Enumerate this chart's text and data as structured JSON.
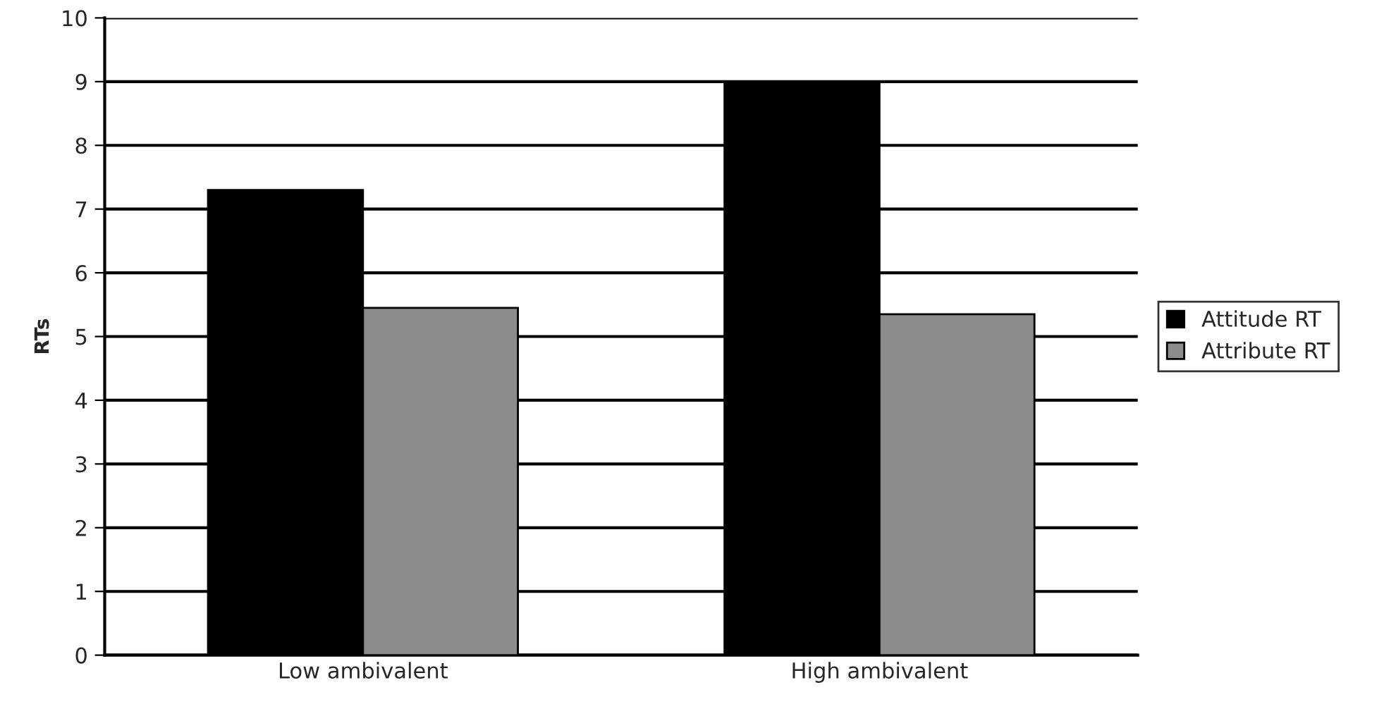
{
  "chart_data": {
    "type": "bar",
    "ylabel": "RTs",
    "categories": [
      "Low ambivalent",
      "High ambivalent"
    ],
    "series": [
      {
        "name": "Attitude RT",
        "color": "#000000",
        "values": [
          7.3,
          9.0
        ]
      },
      {
        "name": "Attribute RT",
        "color": "#8c8c8c",
        "values": [
          5.45,
          5.35
        ]
      }
    ],
    "ylim": [
      0,
      10
    ],
    "yticks": [
      0,
      1,
      2,
      3,
      4,
      5,
      6,
      7,
      8,
      9,
      10
    ],
    "grid": "y",
    "legend": "right"
  }
}
